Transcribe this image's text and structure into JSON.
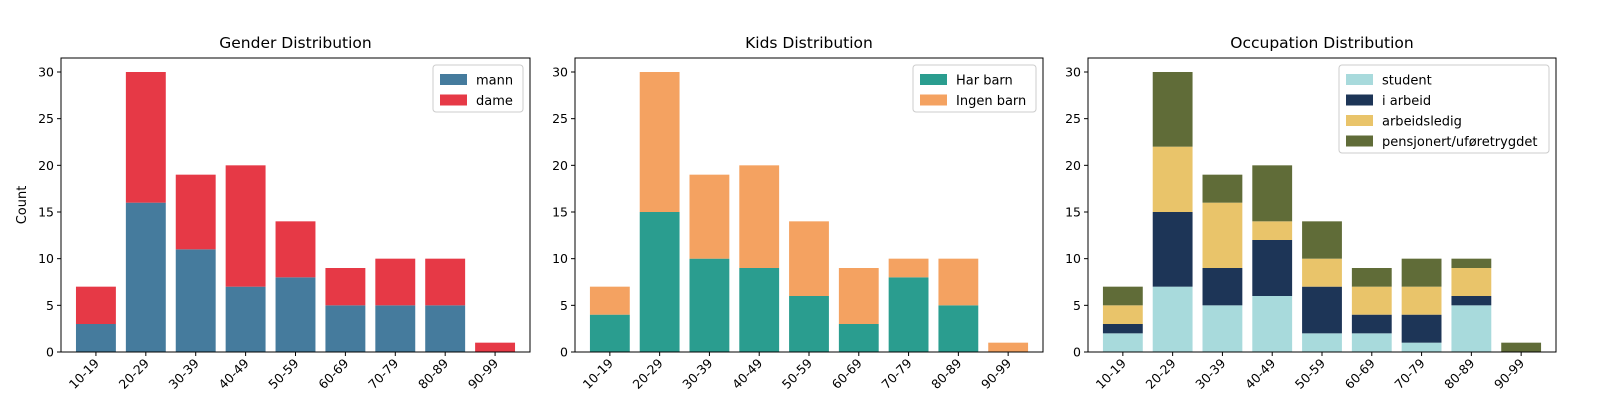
{
  "chart_data": [
    {
      "type": "bar",
      "stacked": true,
      "title": "Gender Distribution",
      "xlabel": "",
      "ylabel": "Count",
      "ylim": [
        0,
        31.5
      ],
      "yticks": [
        0,
        5,
        10,
        15,
        20,
        25,
        30
      ],
      "categories": [
        "10-19",
        "20-29",
        "30-39",
        "40-49",
        "50-59",
        "60-69",
        "70-79",
        "80-89",
        "90-99"
      ],
      "series": [
        {
          "name": "mann",
          "color": "#457b9d",
          "values": [
            3,
            16,
            11,
            7,
            8,
            5,
            5,
            5,
            0
          ]
        },
        {
          "name": "dame",
          "color": "#e63946",
          "values": [
            4,
            14,
            8,
            13,
            6,
            4,
            5,
            5,
            1
          ]
        }
      ],
      "legend": "top-right",
      "grid": false
    },
    {
      "type": "bar",
      "stacked": true,
      "title": "Kids Distribution",
      "xlabel": "",
      "ylabel": "",
      "ylim": [
        0,
        31.5
      ],
      "yticks": [
        0,
        5,
        10,
        15,
        20,
        25,
        30
      ],
      "categories": [
        "10-19",
        "20-29",
        "30-39",
        "40-49",
        "50-59",
        "60-69",
        "70-79",
        "80-89",
        "90-99"
      ],
      "series": [
        {
          "name": "Har barn",
          "color": "#2a9d8f",
          "values": [
            4,
            15,
            10,
            9,
            6,
            3,
            8,
            5,
            0
          ]
        },
        {
          "name": "Ingen barn",
          "color": "#f4a261",
          "values": [
            3,
            15,
            9,
            11,
            8,
            6,
            2,
            5,
            1
          ]
        }
      ],
      "legend": "top-right",
      "grid": false
    },
    {
      "type": "bar",
      "stacked": true,
      "title": "Occupation Distribution",
      "xlabel": "",
      "ylabel": "",
      "ylim": [
        0,
        31.5
      ],
      "yticks": [
        0,
        5,
        10,
        15,
        20,
        25,
        30
      ],
      "categories": [
        "10-19",
        "20-29",
        "30-39",
        "40-49",
        "50-59",
        "60-69",
        "70-79",
        "80-89",
        "90-99"
      ],
      "series": [
        {
          "name": "student",
          "color": "#a8dadc",
          "values": [
            2,
            7,
            5,
            6,
            2,
            2,
            1,
            5,
            0
          ]
        },
        {
          "name": "i arbeid",
          "color": "#1d3557",
          "values": [
            1,
            8,
            4,
            6,
            5,
            2,
            3,
            1,
            0
          ]
        },
        {
          "name": "arbeidsledig",
          "color": "#e9c46a",
          "values": [
            2,
            7,
            7,
            2,
            3,
            3,
            3,
            3,
            0
          ]
        },
        {
          "name": "pensjonert/uføretrygdet",
          "color": "#606c38",
          "values": [
            2,
            8,
            3,
            6,
            4,
            2,
            3,
            1,
            1
          ]
        }
      ],
      "legend": "top-right",
      "grid": false
    }
  ]
}
